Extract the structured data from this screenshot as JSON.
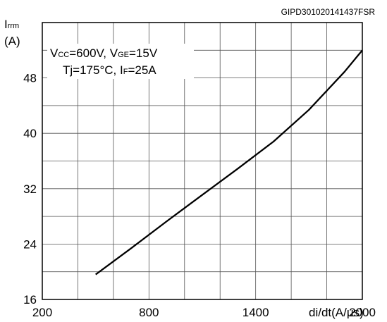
{
  "chart_id": "GIPD301020141437FSR",
  "chart_data": {
    "type": "line",
    "ylabel_main": "I",
    "ylabel_sub": "rrm",
    "yunit": "(A)",
    "xlabel": "di/dt(A/μs)",
    "xlim": [
      200,
      2000
    ],
    "ylim": [
      16,
      56
    ],
    "x_ticks": [
      "200",
      "800",
      "1400",
      "2000"
    ],
    "x_tick_values": [
      200,
      800,
      1400,
      2000
    ],
    "y_ticks": [
      "16",
      "24",
      "32",
      "40",
      "48"
    ],
    "y_tick_values": [
      16,
      24,
      32,
      40,
      48
    ],
    "grid": true,
    "x_minor_step": 200,
    "y_minor_step": 4,
    "series": [
      {
        "x": [
          500,
          700,
          900,
          1100,
          1300,
          1500,
          1700,
          1900,
          2000
        ],
        "y": [
          19.6,
          23.4,
          27.3,
          31.1,
          34.9,
          38.8,
          43.4,
          48.9,
          52.0
        ]
      }
    ]
  },
  "annotation": {
    "line1": {
      "v": "V",
      "cc": "CC",
      "mid": "=600V, V",
      "ge": "GE",
      "end": "=15V"
    },
    "line2": {
      "start": "Tj=175°C,  I",
      "f": "F",
      "end": "=25A"
    }
  }
}
